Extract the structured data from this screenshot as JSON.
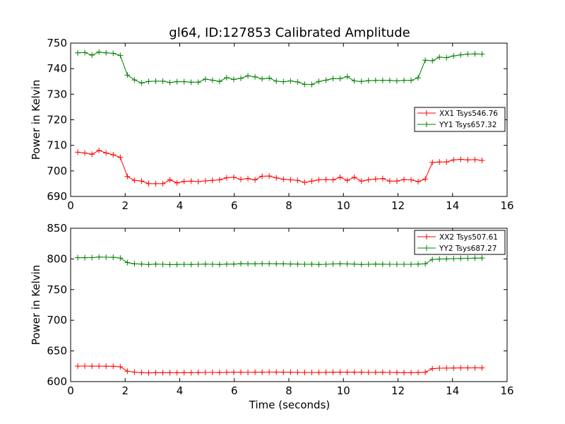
{
  "chart_data": [
    {
      "type": "line",
      "title": "gl64, ID:127853 Calibrated Amplitude",
      "xlabel": "",
      "ylabel": "Power in Kelvin",
      "xlim": [
        0,
        16
      ],
      "ylim": [
        690,
        750
      ],
      "xticks": [
        "0",
        "2",
        "4",
        "6",
        "8",
        "10",
        "12",
        "14",
        "16"
      ],
      "yticks": [
        "690",
        "700",
        "710",
        "720",
        "730",
        "740",
        "750"
      ],
      "legend_position": "center-right",
      "x": [
        0.26,
        0.52,
        0.78,
        1.04,
        1.3,
        1.56,
        1.82,
        2.08,
        2.34,
        2.6,
        2.86,
        3.12,
        3.38,
        3.64,
        3.9,
        4.16,
        4.42,
        4.68,
        4.94,
        5.2,
        5.46,
        5.72,
        5.98,
        6.24,
        6.5,
        6.76,
        7.02,
        7.28,
        7.54,
        7.8,
        8.06,
        8.32,
        8.58,
        8.84,
        9.1,
        9.36,
        9.62,
        9.88,
        10.14,
        10.4,
        10.66,
        10.92,
        11.18,
        11.44,
        11.7,
        11.96,
        12.22,
        12.48,
        12.74,
        13.0,
        13.26,
        13.52,
        13.78,
        14.04,
        14.3,
        14.56,
        14.82,
        15.08
      ],
      "series": [
        {
          "name": "XX1 Tsys546.76",
          "color": "#ff0000",
          "values": [
            707.3,
            707.0,
            706.5,
            708.0,
            707.0,
            706.3,
            705.3,
            697.8,
            696.3,
            696.0,
            695.0,
            695.0,
            695.0,
            696.5,
            695.3,
            695.9,
            696.0,
            695.8,
            696.1,
            696.3,
            696.5,
            697.3,
            697.5,
            696.7,
            697.0,
            696.5,
            697.9,
            698.0,
            697.3,
            696.7,
            696.5,
            696.3,
            695.5,
            696.0,
            696.5,
            696.6,
            696.5,
            697.5,
            696.3,
            697.5,
            696.0,
            696.5,
            696.8,
            697.0,
            696.0,
            696.0,
            696.6,
            696.5,
            695.8,
            696.8,
            703.3,
            703.5,
            703.5,
            704.3,
            704.5,
            704.3,
            704.4,
            704.1
          ]
        },
        {
          "name": "YY1 Tsys657.32",
          "color": "#008000",
          "values": [
            746.2,
            746.3,
            745.3,
            746.5,
            746.2,
            746.0,
            745.2,
            737.5,
            735.6,
            734.4,
            735.0,
            735.1,
            735.1,
            734.6,
            734.9,
            734.9,
            734.7,
            734.7,
            735.9,
            735.5,
            735.0,
            736.5,
            735.8,
            736.2,
            737.2,
            736.8,
            736.0,
            736.3,
            735.1,
            734.9,
            735.2,
            734.8,
            733.9,
            733.8,
            735.0,
            735.5,
            736.1,
            736.1,
            736.9,
            735.2,
            735.0,
            735.3,
            735.4,
            735.4,
            735.4,
            735.2,
            735.4,
            735.4,
            736.4,
            743.3,
            743.1,
            744.5,
            744.3,
            745.0,
            745.4,
            745.7,
            745.8,
            745.7
          ]
        }
      ]
    },
    {
      "type": "line",
      "title": "",
      "xlabel": "Time (seconds)",
      "ylabel": "Power in Kelvin",
      "xlim": [
        0,
        16
      ],
      "ylim": [
        600,
        850
      ],
      "xticks": [
        "0",
        "2",
        "4",
        "6",
        "8",
        "10",
        "12",
        "14",
        "16"
      ],
      "yticks": [
        "600",
        "650",
        "700",
        "750",
        "800",
        "850"
      ],
      "legend_position": "top-right",
      "x": [
        0.26,
        0.52,
        0.78,
        1.04,
        1.3,
        1.56,
        1.82,
        2.08,
        2.34,
        2.6,
        2.86,
        3.12,
        3.38,
        3.64,
        3.9,
        4.16,
        4.42,
        4.68,
        4.94,
        5.2,
        5.46,
        5.72,
        5.98,
        6.24,
        6.5,
        6.76,
        7.02,
        7.28,
        7.54,
        7.8,
        8.06,
        8.32,
        8.58,
        8.84,
        9.1,
        9.36,
        9.62,
        9.88,
        10.14,
        10.4,
        10.66,
        10.92,
        11.18,
        11.44,
        11.7,
        11.96,
        12.22,
        12.48,
        12.74,
        13.0,
        13.26,
        13.52,
        13.78,
        14.04,
        14.3,
        14.56,
        14.82,
        15.08
      ],
      "series": [
        {
          "name": "XX2 Tsys507.61",
          "color": "#ff0000",
          "values": [
            625.2,
            625.3,
            625.2,
            625.4,
            625.1,
            625.0,
            624.2,
            617.0,
            615.4,
            614.8,
            614.3,
            614.6,
            614.5,
            614.6,
            614.5,
            614.7,
            614.6,
            614.8,
            615.0,
            615.0,
            614.8,
            615.1,
            615.2,
            615.2,
            615.0,
            615.3,
            615.2,
            615.6,
            615.4,
            615.3,
            615.3,
            615.1,
            614.9,
            615.0,
            614.9,
            615.1,
            615.2,
            615.4,
            615.3,
            615.3,
            615.3,
            615.0,
            615.1,
            615.2,
            615.0,
            614.8,
            614.6,
            614.6,
            614.8,
            615.3,
            621.0,
            621.9,
            622.0,
            622.2,
            622.3,
            622.3,
            622.4,
            622.3
          ]
        },
        {
          "name": "YY2 Tsys687.27",
          "color": "#008000",
          "values": [
            802.0,
            802.0,
            802.2,
            803.0,
            802.8,
            802.6,
            801.5,
            794.0,
            792.0,
            791.5,
            791.0,
            791.5,
            791.2,
            790.8,
            791.0,
            791.2,
            791.0,
            791.3,
            791.5,
            791.2,
            791.0,
            791.6,
            791.5,
            792.2,
            791.9,
            792.0,
            792.3,
            792.3,
            791.9,
            792.0,
            791.7,
            791.5,
            791.3,
            791.4,
            791.0,
            791.3,
            791.8,
            792.0,
            791.8,
            791.6,
            791.0,
            791.3,
            791.5,
            791.4,
            791.3,
            791.3,
            791.3,
            791.3,
            791.5,
            792.0,
            799.2,
            799.8,
            800.1,
            800.5,
            800.8,
            801.0,
            801.3,
            801.4
          ]
        }
      ]
    }
  ]
}
